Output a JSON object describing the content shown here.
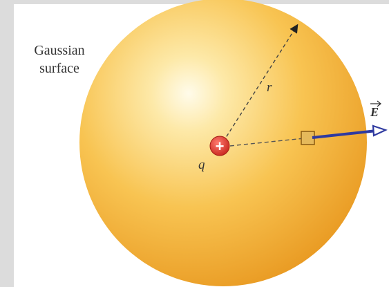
{
  "diagram": {
    "surface_label_line1": "Gaussian",
    "surface_label_line2": "surface",
    "radius_label": "r",
    "charge_label": "q",
    "charge_sign": "+",
    "field_label": "E",
    "colors": {
      "sphere_highlight": "#fff6d8",
      "sphere_mid": "#f7c04a",
      "sphere_edge": "#e89a20",
      "charge": "#e0332a",
      "field_vector": "#2f3aa0",
      "area_element": "#c9912a"
    }
  }
}
